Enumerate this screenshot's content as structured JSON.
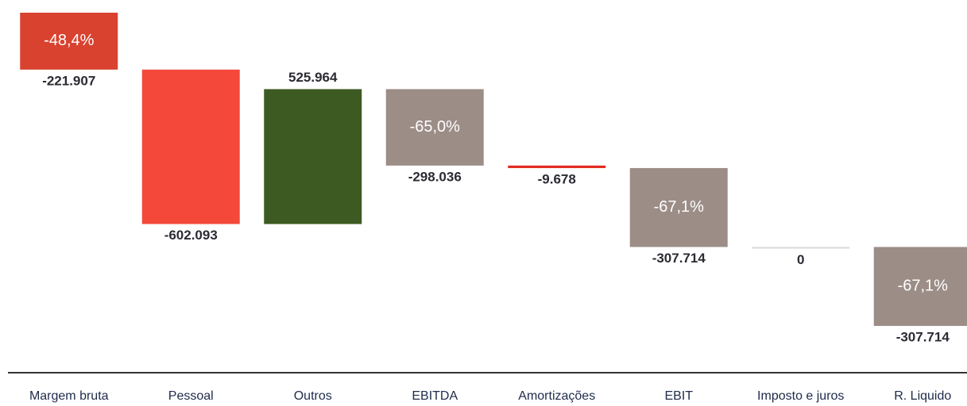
{
  "chart_data": {
    "type": "waterfall",
    "categories": [
      "Margem bruta",
      "Pessoal",
      "Outros",
      "EBITDA",
      "Amortizações",
      "EBIT",
      "Imposto e juros",
      "R. Liquido"
    ],
    "values": [
      -221907,
      -602093,
      525964,
      -298036,
      -9678,
      -307714,
      0,
      -307714
    ],
    "value_labels": [
      "-221.907",
      "-602.093",
      "525.964",
      "-298.036",
      "-9.678",
      "-307.714",
      "0",
      "-307.714"
    ],
    "percent_labels": [
      "-48,4%",
      null,
      null,
      "-65,0%",
      null,
      "-67,1%",
      null,
      "-67,1%"
    ],
    "colors": [
      "#d8422f",
      "#f4483a",
      "#3d5a22",
      "#9c8d87",
      "#e0281c",
      "#9c8d87",
      "#d9d9d9",
      "#9c8d87"
    ]
  }
}
